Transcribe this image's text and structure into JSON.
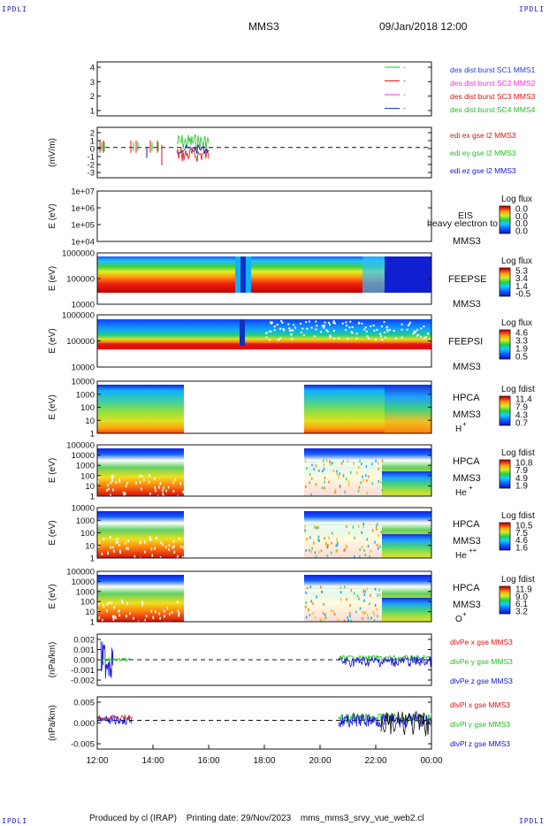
{
  "header": {
    "mission": "MMS3",
    "datetime": "09/Jan/2018 12:00",
    "corner_mark": "IPDLI"
  },
  "footer": {
    "produced_by": "Produced by cl (IRAP)",
    "printing_date": "Printing date: 29/Nov/2023",
    "filename": "mms_mms3_srvy_vue_web2.cl"
  },
  "colors": {
    "mms1": "#1e3ce8",
    "mms2": "#e01010",
    "mms3": "#ff2bd6",
    "mms4": "#20c020",
    "red": "#e01010",
    "green": "#20c020",
    "blue": "#1414d0"
  },
  "chart_data": {
    "type": "multi-panel-timeseries",
    "x_tick_labels": [
      "12:00",
      "14:00",
      "16:00",
      "18:00",
      "20:00",
      "22:00",
      "00:00"
    ],
    "x_range_hours": [
      12,
      24
    ],
    "panels": [
      {
        "id": "burst",
        "type": "line",
        "ylabel": "",
        "yticks": [
          "4",
          "3",
          "2",
          "1"
        ],
        "legend": [
          {
            "text": "des dist burst SC1 MMS1",
            "color": "#1e3ce8"
          },
          {
            "text": "des dist burst SC2 MMS2",
            "color": "#ff2bd6"
          },
          {
            "text": "des dist burst SC3 MMS3",
            "color": "#e01010"
          },
          {
            "text": "des dist burst SC4 MMS4",
            "color": "#20c020"
          }
        ],
        "inset_labels": [
          "-",
          "-",
          "-",
          "-"
        ]
      },
      {
        "id": "edi",
        "type": "line",
        "ylabel": "(mV/m)",
        "yticks": [
          "2",
          "1",
          "0",
          "-1",
          "-2",
          "-3"
        ],
        "legend": [
          {
            "text": "edi ex gse l2 MMS3",
            "color": "#e01010"
          },
          {
            "text": "edi ey gse l2 MMS3",
            "color": "#20c020"
          },
          {
            "text": "edi ez gse l2 MMS3",
            "color": "#1414d0"
          }
        ]
      },
      {
        "id": "eis",
        "type": "heatmap",
        "ylabel": "E (eV)",
        "yticks": [
          "1e+07",
          "1e+06",
          "1e+05",
          "1e+04"
        ],
        "instrument": "EIS",
        "overlay": "heavy electron to",
        "sc": "MMS3",
        "colorbar_title": "Log flux",
        "colorbar_ticks": [
          "0.0",
          "0.0",
          "0.0",
          "0.0"
        ]
      },
      {
        "id": "feepse",
        "type": "heatmap",
        "ylabel": "E (eV)",
        "yticks": [
          "1000000",
          "100000",
          "10000"
        ],
        "instrument": "FEEPSE",
        "sc": "MMS3",
        "colorbar_title": "Log flux",
        "colorbar_ticks": [
          "5.3",
          "3.4",
          "1.4",
          "-0.5"
        ]
      },
      {
        "id": "feepsi",
        "type": "heatmap",
        "ylabel": "E (eV)",
        "yticks": [
          "1000000",
          "100000",
          "10000"
        ],
        "instrument": "FEEPSI",
        "sc": "MMS3",
        "colorbar_title": "Log flux",
        "colorbar_ticks": [
          "4.6",
          "3.3",
          "1.9",
          "0.5"
        ]
      },
      {
        "id": "hpca_h",
        "type": "heatmap",
        "ylabel": "E (eV)",
        "yticks": [
          "10000",
          "1000",
          "100",
          "10",
          "1"
        ],
        "instrument": "HPCA",
        "sc": "MMS3",
        "species": "H",
        "charge": "+",
        "colorbar_title": "Log fdist",
        "colorbar_ticks": [
          "11.4",
          "7.9",
          "4.3",
          "0.7"
        ]
      },
      {
        "id": "hpca_he1",
        "type": "heatmap",
        "ylabel": "E (eV)",
        "yticks": [
          "100000",
          "10000",
          "1000",
          "100",
          "10",
          "1"
        ],
        "instrument": "HPCA",
        "sc": "MMS3",
        "species": "He",
        "charge": "+",
        "colorbar_title": "Log fdist",
        "colorbar_ticks": [
          "10.8",
          "7.9",
          "4.9",
          "1.9"
        ]
      },
      {
        "id": "hpca_he2",
        "type": "heatmap",
        "ylabel": "E (eV)",
        "yticks": [
          "10000",
          "1000",
          "100",
          "10",
          "1"
        ],
        "instrument": "HPCA",
        "sc": "MMS3",
        "species": "He",
        "charge": "++",
        "colorbar_title": "Log fdist",
        "colorbar_ticks": [
          "10.5",
          "7.5",
          "4.6",
          "1.6"
        ]
      },
      {
        "id": "hpca_o",
        "type": "heatmap",
        "ylabel": "E (eV)",
        "yticks": [
          "100000",
          "10000",
          "1000",
          "100",
          "10",
          "1"
        ],
        "instrument": "HPCA",
        "sc": "MMS3",
        "species": "O",
        "charge": "+",
        "colorbar_title": "Log fdist",
        "colorbar_ticks": [
          "11.9",
          "9.0",
          "6.1",
          "3.2"
        ]
      },
      {
        "id": "divpe",
        "type": "line",
        "ylabel": "(nPa/km)",
        "yticks": [
          "0.002",
          "0.001",
          "0.000",
          "-0.001",
          "-0.002"
        ],
        "legend": [
          {
            "text": "dlvPe x gse MMS3",
            "color": "#e01010"
          },
          {
            "text": "dlvPe y gse MMS3",
            "color": "#20c020"
          },
          {
            "text": "dlvPe z gse MMS3",
            "color": "#1414d0"
          }
        ]
      },
      {
        "id": "divpi",
        "type": "line",
        "ylabel": "(nPa/km)",
        "yticks": [
          "0.005",
          "0.000",
          "-0.005"
        ],
        "legend": [
          {
            "text": "dlvPl x gse MMS3",
            "color": "#e01010"
          },
          {
            "text": "dlvPl y gse MMS3",
            "color": "#20c020"
          },
          {
            "text": "dlvPl z gse MMS3",
            "color": "#1414d0"
          }
        ]
      }
    ]
  }
}
